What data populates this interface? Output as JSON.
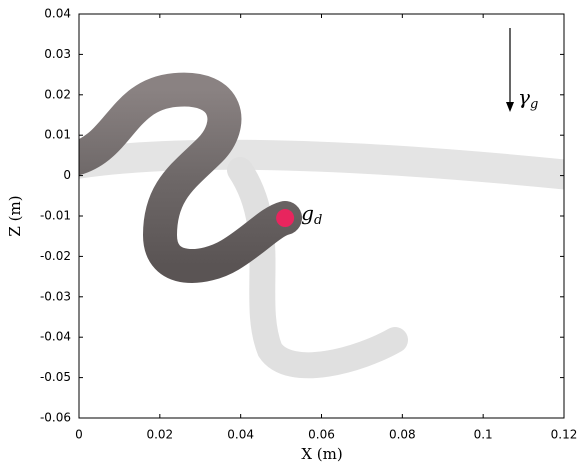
{
  "chart_data": {
    "type": "scatter",
    "x_label": "X (m)",
    "y_label": "Z (m)",
    "x": [
      0.051
    ],
    "values": [
      -0.0105
    ],
    "color": "#e8255e",
    "xlim": [
      0,
      0.12
    ],
    "xticks": [
      0,
      0.02,
      0.04,
      0.06,
      0.08,
      0.1,
      0.12
    ],
    "ylim": [
      -0.06,
      0.04
    ],
    "yticks": [
      -0.06,
      -0.05,
      -0.04,
      -0.03,
      -0.02,
      -0.01,
      0,
      0.01,
      0.02,
      0.03,
      0.04
    ],
    "grid": false,
    "annotations": [
      {
        "text": "g",
        "subscript": "d"
      },
      {
        "text": "γ",
        "subscript": "g"
      }
    ]
  }
}
